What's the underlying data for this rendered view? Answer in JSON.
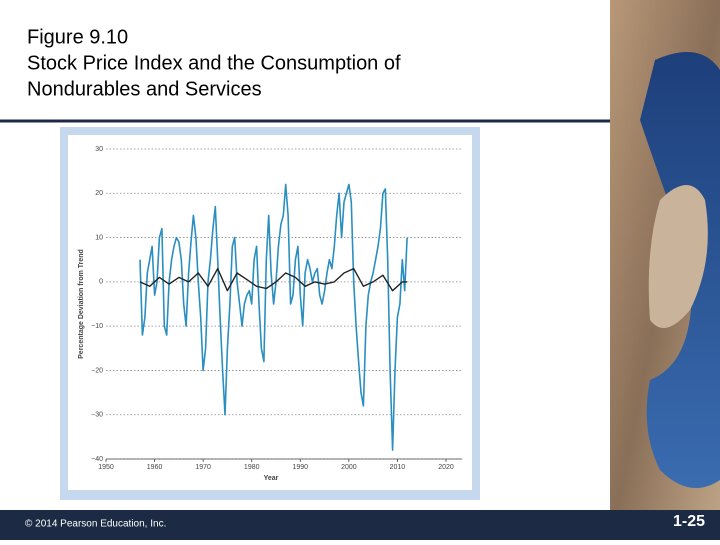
{
  "slide": {
    "title": [
      "Figure 9.10",
      "Stock Price Index and the Consumption of",
      "Nondurables and Services"
    ],
    "footer": "© 2014 Pearson Education, Inc.",
    "page": "1-25"
  },
  "chart_data": {
    "type": "line",
    "xlabel": "Year",
    "ylabel": "Percentage Deviation from Trend",
    "xlim": [
      1950,
      2020
    ],
    "ylim": [
      -40,
      30
    ],
    "xticks": [
      1950,
      1960,
      1970,
      1980,
      1990,
      2000,
      2010,
      2020
    ],
    "yticks": [
      {
        "value": -40,
        "label": "−40"
      },
      {
        "value": -30,
        "label": "−30"
      },
      {
        "value": -20,
        "label": "−20"
      },
      {
        "value": -10,
        "label": "−10"
      },
      0,
      10,
      20,
      30
    ],
    "grid": true,
    "series": [
      {
        "color": "#2a8fc0",
        "x": [
          1957,
          1957.5,
          1958,
          1958.5,
          1959,
          1959.5,
          1960,
          1960.5,
          1961,
          1961.5,
          1962,
          1962.5,
          1963,
          1963.5,
          1964,
          1964.5,
          1965,
          1965.5,
          1966,
          1966.5,
          1967,
          1967.5,
          1968,
          1968.5,
          1969,
          1969.5,
          1970,
          1970.5,
          1971,
          1971.5,
          1972,
          1972.5,
          1973,
          1973.5,
          1974,
          1974.5,
          1975,
          1975.5,
          1976,
          1976.5,
          1977,
          1977.5,
          1978,
          1978.5,
          1979,
          1979.5,
          1980,
          1980.5,
          1981,
          1981.5,
          1982,
          1982.5,
          1983,
          1983.5,
          1984,
          1984.5,
          1985,
          1985.5,
          1986,
          1986.5,
          1987,
          1987.5,
          1988,
          1988.5,
          1989,
          1989.5,
          1990,
          1990.5,
          1991,
          1991.5,
          1992,
          1992.5,
          1993,
          1993.5,
          1994,
          1994.5,
          1995,
          1995.5,
          1996,
          1996.5,
          1997,
          1997.5,
          1998,
          1998.5,
          1999,
          1999.5,
          2000,
          2000.5,
          2001,
          2001.5,
          2002,
          2002.5,
          2003,
          2003.5,
          2004,
          2004.5,
          2005,
          2005.5,
          2006,
          2006.5,
          2007,
          2007.5,
          2008,
          2008.5,
          2009,
          2009.5,
          2010,
          2010.5,
          2011,
          2011.5,
          2012
        ],
        "values": [
          5,
          -12,
          -8,
          2,
          5,
          8,
          -3,
          0,
          10,
          12,
          -10,
          -12,
          0,
          5,
          8,
          10,
          9,
          5,
          -5,
          -10,
          2,
          9,
          15,
          10,
          0,
          -8,
          -20,
          -15,
          0,
          5,
          12,
          17,
          5,
          -8,
          -20,
          -30,
          -15,
          -5,
          8,
          10,
          0,
          -5,
          -10,
          -5,
          -3,
          -2,
          -5,
          5,
          8,
          -5,
          -15,
          -18,
          5,
          15,
          2,
          -5,
          0,
          8,
          13,
          15,
          22,
          15,
          -5,
          -3,
          5,
          8,
          -3,
          -10,
          2,
          5,
          3,
          0,
          2,
          3,
          -3,
          -5,
          -2,
          2,
          5,
          3,
          8,
          15,
          20,
          10,
          18,
          20,
          22,
          18,
          0,
          -10,
          -18,
          -25,
          -28,
          -10,
          -3,
          0,
          2,
          5,
          8,
          12,
          20,
          21,
          5,
          -20,
          -38,
          -20,
          -8,
          -5,
          5,
          -2,
          10
        ]
      },
      {
        "color": "#222222",
        "x": [
          1957,
          1959,
          1961,
          1963,
          1965,
          1967,
          1969,
          1971,
          1973,
          1975,
          1977,
          1979,
          1981,
          1983,
          1985,
          1987,
          1989,
          1991,
          1993,
          1995,
          1997,
          1999,
          2001,
          2003,
          2005,
          2007,
          2009,
          2011,
          2012
        ],
        "values": [
          0,
          -1,
          1,
          -0.5,
          1,
          0,
          2,
          -1,
          3,
          -2,
          2,
          0.5,
          -1,
          -1.5,
          0,
          2,
          1,
          -1,
          0,
          -0.5,
          0,
          2,
          3,
          -1,
          0,
          1.5,
          -2,
          0,
          0
        ]
      }
    ]
  }
}
